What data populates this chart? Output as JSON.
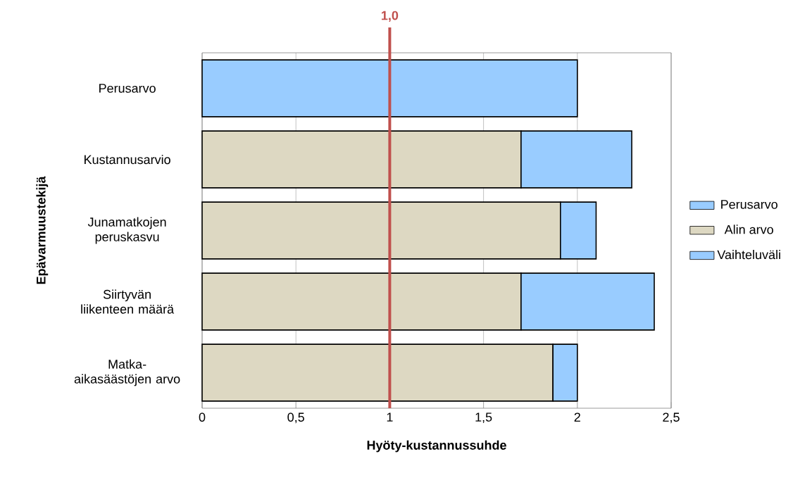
{
  "chart_data": {
    "type": "bar",
    "orientation": "horizontal",
    "stacked": true,
    "xlabel": "Hyöty-kustannussuhde",
    "ylabel": "Epävarmuustekijä",
    "categories": [
      "Perusarvo",
      "Kustannusarvio",
      "Junamatkojen peruskasvu",
      "Siirtyvän liikenteen määrä",
      "Matka-aikasäästöjen arvo"
    ],
    "series": [
      {
        "name": "Perusarvo",
        "color": "#99ccff",
        "values": [
          2.0,
          null,
          null,
          null,
          null
        ]
      },
      {
        "name": "Alin arvo",
        "color": "#ddd8c2",
        "values": [
          null,
          1.7,
          1.91,
          1.7,
          1.87
        ]
      },
      {
        "name": "Vaihteluväli",
        "color": "#99ccff",
        "values": [
          null,
          0.59,
          0.19,
          0.71,
          0.13
        ]
      }
    ],
    "xlim": [
      0,
      2.5
    ],
    "xticks": [
      0,
      {
        "value": 0.5,
        "label": "0,5"
      },
      1,
      {
        "value": 1.5,
        "label": "1,5"
      },
      2,
      {
        "value": 2.5,
        "label": "2,5"
      }
    ],
    "ref_lines": [
      {
        "axis": "x",
        "value": 1,
        "label": "1,0",
        "color": "#c0504d"
      }
    ],
    "grid": "x",
    "legend": "right"
  }
}
